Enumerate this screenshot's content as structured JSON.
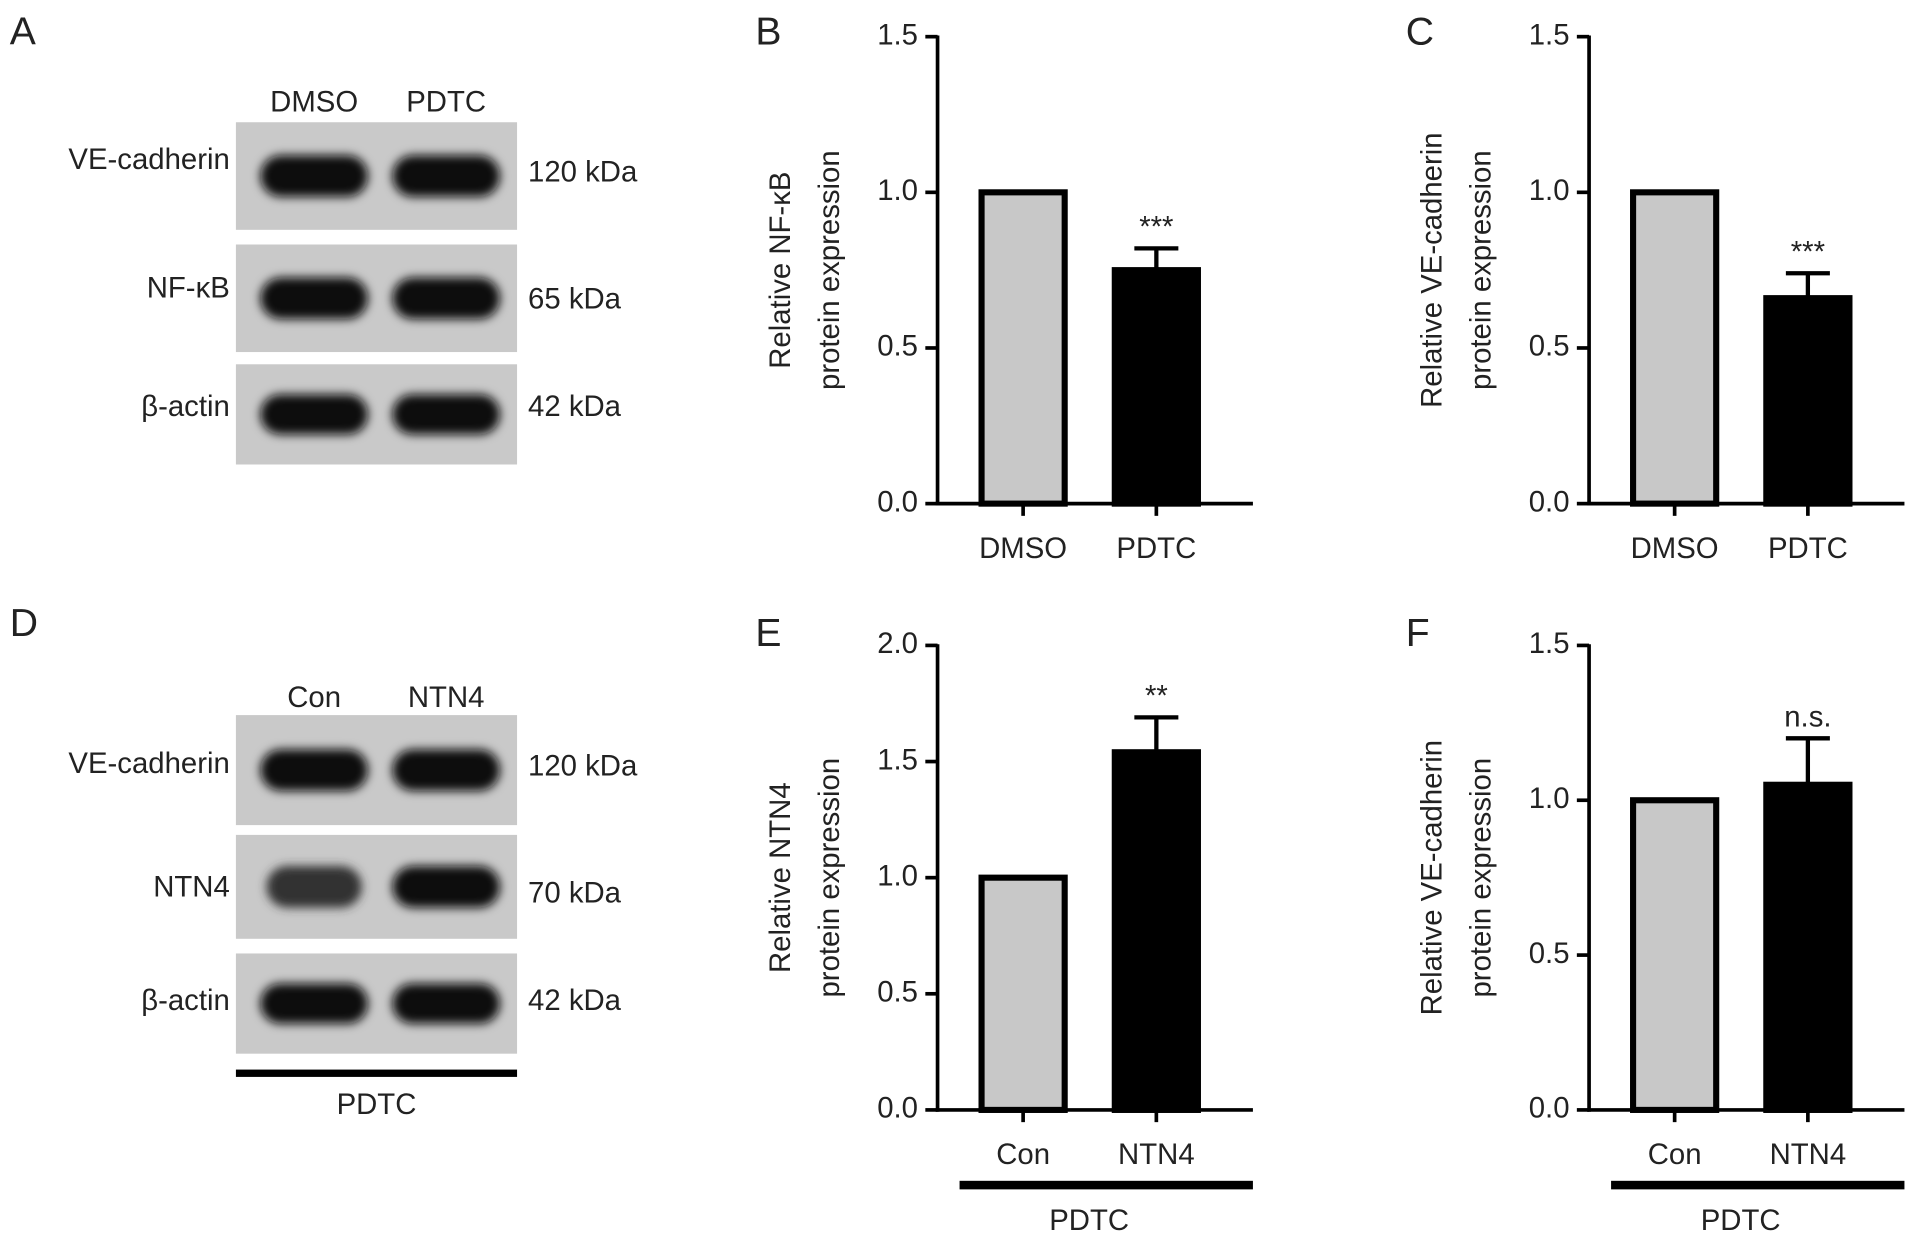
{
  "blots": [
    {
      "panel": "A",
      "lanes": [
        "DMSO",
        "PDTC"
      ],
      "rows": [
        {
          "label": "VE-cadherin",
          "size": "120 kDa"
        },
        {
          "label": "NF-κB",
          "size": "65 kDa"
        },
        {
          "label": "β-actin",
          "size": "42 kDa"
        }
      ]
    },
    {
      "panel": "D",
      "lanes": [
        "Con",
        "NTN4"
      ],
      "group": "PDTC",
      "rows": [
        {
          "label": "VE-cadherin",
          "size": "120 kDa"
        },
        {
          "label": "NTN4",
          "size": "70 kDa"
        },
        {
          "label": "β-actin",
          "size": "42 kDa"
        }
      ]
    }
  ],
  "chart_data": [
    {
      "type": "bar",
      "panel": "B",
      "ylabel": [
        "Relative NF-κB",
        "protein expression"
      ],
      "categories": [
        "DMSO",
        "PDTC"
      ],
      "values": [
        1.0,
        0.75
      ],
      "errors": [
        null,
        0.07
      ],
      "colors": [
        "#c8c8c8",
        "#000000"
      ],
      "annotation": "***",
      "ylim": [
        0,
        1.5
      ],
      "yticks": [
        {
          "value": 0,
          "label": "0.0"
        },
        {
          "value": 0.5,
          "label": "0.5"
        },
        {
          "value": 1,
          "label": "1.0"
        },
        {
          "value": 1.5,
          "label": "1.5"
        }
      ]
    },
    {
      "type": "bar",
      "panel": "C",
      "ylabel": [
        "Relative VE-cadherin",
        "protein expression"
      ],
      "categories": [
        "DMSO",
        "PDTC"
      ],
      "values": [
        1.0,
        0.66
      ],
      "errors": [
        null,
        0.08
      ],
      "colors": [
        "#c8c8c8",
        "#000000"
      ],
      "annotation": "***",
      "ylim": [
        0,
        1.5
      ],
      "yticks": [
        {
          "value": 0,
          "label": "0.0"
        },
        {
          "value": 0.5,
          "label": "0.5"
        },
        {
          "value": 1,
          "label": "1.0"
        },
        {
          "value": 1.5,
          "label": "1.5"
        }
      ]
    },
    {
      "type": "bar",
      "panel": "E",
      "ylabel": [
        "Relative NTN4",
        "protein expression"
      ],
      "categories": [
        "Con",
        "NTN4"
      ],
      "values": [
        1.0,
        1.54
      ],
      "errors": [
        null,
        0.15
      ],
      "colors": [
        "#c8c8c8",
        "#000000"
      ],
      "annotation": "**",
      "group": "PDTC",
      "ylim": [
        0,
        2
      ],
      "yticks": [
        {
          "value": 0,
          "label": "0.0"
        },
        {
          "value": 0.5,
          "label": "0.5"
        },
        {
          "value": 1,
          "label": "1.0"
        },
        {
          "value": 1.5,
          "label": "1.5"
        },
        {
          "value": 2,
          "label": "2.0"
        }
      ]
    },
    {
      "type": "bar",
      "panel": "F",
      "ylabel": [
        "Relative VE-cadherin",
        "protein expression"
      ],
      "categories": [
        "Con",
        "NTN4"
      ],
      "values": [
        1.0,
        1.05
      ],
      "errors": [
        null,
        0.15
      ],
      "colors": [
        "#c8c8c8",
        "#000000"
      ],
      "annotation": "n.s.",
      "group": "PDTC",
      "ylim": [
        0,
        1.5
      ],
      "yticks": [
        {
          "value": 0,
          "label": "0.0"
        },
        {
          "value": 0.5,
          "label": "0.5"
        },
        {
          "value": 1,
          "label": "1.0"
        },
        {
          "value": 1.5,
          "label": "1.5"
        }
      ]
    }
  ]
}
